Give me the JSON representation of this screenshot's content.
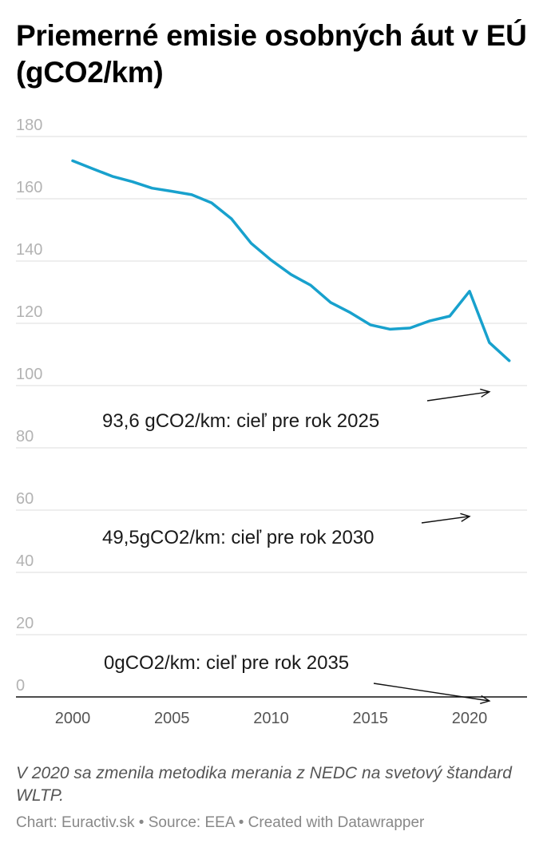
{
  "title": "Priemerné emisie osobných áut v EÚ (gCO2/km)",
  "note": "V 2020 sa zmenila metodika merania z NEDC na svetový štandard WLTP.",
  "credits": "Chart: Euractiv.sk • Source: EEA • Created with Datawrapper",
  "chart_data": {
    "type": "line",
    "title": "Priemerné emisie osobných áut v EÚ (gCO2/km)",
    "xlabel": "",
    "ylabel": "",
    "xlim": [
      1998,
      2023
    ],
    "ylim": [
      0,
      180
    ],
    "grid": true,
    "line_color": "#18a1cd",
    "x_ticks": [
      "2000",
      "2005",
      "2010",
      "2015",
      "2020"
    ],
    "y_ticks": [
      "0",
      "20",
      "40",
      "60",
      "80",
      "100",
      "120",
      "140",
      "160",
      "180"
    ],
    "x": [
      2000,
      2001,
      2002,
      2003,
      2004,
      2005,
      2006,
      2007,
      2008,
      2009,
      2010,
      2011,
      2012,
      2013,
      2014,
      2015,
      2016,
      2017,
      2018,
      2019,
      2020,
      2021,
      2022
    ],
    "series": [
      {
        "values": [
          172.2,
          169.7,
          167.2,
          165.5,
          163.4,
          162.4,
          161.3,
          158.7,
          153.6,
          145.7,
          140.3,
          135.7,
          132.2,
          126.7,
          123.4,
          119.5,
          118.1,
          118.5,
          120.8,
          122.3,
          130.3,
          113.8,
          108.0
        ]
      }
    ],
    "annotations": [
      {
        "text": "93,6 gCO2/km: cieľ pre rok 2025",
        "target_x": 2021,
        "target_y": 98
      },
      {
        "text": "49,5gCO2/km: cieľ pre rok 2030",
        "target_x": 2020,
        "target_y": 58
      },
      {
        "text": "0gCO2/km: cieľ pre rok 2035",
        "target_x": 2021,
        "target_y": 0
      }
    ]
  }
}
